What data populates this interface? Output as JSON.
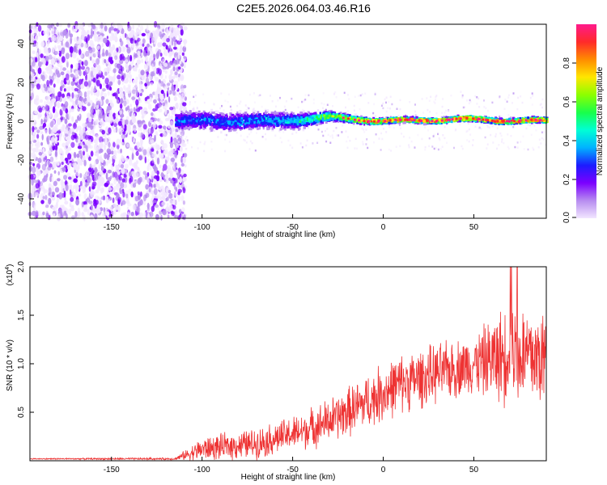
{
  "title": "C2E5.2026.064.03.46.R16",
  "chart_data": [
    {
      "type": "heatmap",
      "xlabel": "Height of straight line (km)",
      "ylabel": "Frequency (Hz)",
      "xlim": [
        -195,
        90
      ],
      "ylim": [
        -50,
        50
      ],
      "xticks": [
        -150,
        -100,
        -50,
        0,
        50
      ],
      "yticks": [
        -40,
        -20,
        0,
        20,
        40
      ],
      "colorbar": {
        "label": "Normalized spectral amplitude",
        "ticks": [
          "0.0",
          "0.2",
          "0.4",
          "0.6",
          "0.8"
        ],
        "range": [
          0,
          1
        ],
        "colors": [
          "#f2e6ff",
          "#b78cf0",
          "#7b00ff",
          "#1c1cff",
          "#00b3ff",
          "#00ffd5",
          "#19ff4a",
          "#8cff00",
          "#ffe600",
          "#ff8c00",
          "#ff2a2a",
          "#ff1a8c"
        ]
      },
      "noise_region_x": [
        -195,
        -115
      ],
      "signal_region_x": [
        -115,
        90
      ],
      "signal_center_hz": [
        {
          "x": -110,
          "y": 0
        },
        {
          "x": -60,
          "y": 0
        },
        {
          "x": -30,
          "y": 2
        },
        {
          "x": 0,
          "y": 0
        },
        {
          "x": 40,
          "y": 1
        },
        {
          "x": 90,
          "y": 0
        }
      ],
      "signal_halfwidth_hz": [
        {
          "x": -110,
          "y": 7
        },
        {
          "x": -50,
          "y": 6
        },
        {
          "x": -25,
          "y": 3
        },
        {
          "x": 0,
          "y": 2
        },
        {
          "x": 90,
          "y": 2
        }
      ],
      "peak_amplitude": [
        {
          "x": -110,
          "y": 0.35
        },
        {
          "x": -50,
          "y": 0.45
        },
        {
          "x": -25,
          "y": 0.75
        },
        {
          "x": 0,
          "y": 0.95
        },
        {
          "x": 90,
          "y": 0.95
        }
      ]
    },
    {
      "type": "line",
      "xlabel": "Height of straight line (km)",
      "ylabel": "SNR (10 * v/v)",
      "multiplier": "(x10",
      "multiplier_exp": "4",
      "xlim": [
        -195,
        90
      ],
      "ylim": [
        0,
        2.0
      ],
      "xticks": [
        -150,
        -100,
        -50,
        0,
        50
      ],
      "yticks": [
        "0.5",
        "1.0",
        "1.5",
        "2.0"
      ],
      "series": [
        {
          "color": "#ee3333",
          "envelope_mean": [
            {
              "x": -195,
              "y": 0.02
            },
            {
              "x": -115,
              "y": 0.02
            },
            {
              "x": -100,
              "y": 0.12
            },
            {
              "x": -70,
              "y": 0.18
            },
            {
              "x": -45,
              "y": 0.3
            },
            {
              "x": -25,
              "y": 0.45
            },
            {
              "x": -10,
              "y": 0.6
            },
            {
              "x": 10,
              "y": 0.8
            },
            {
              "x": 30,
              "y": 0.9
            },
            {
              "x": 50,
              "y": 1.0
            },
            {
              "x": 70,
              "y": 1.1
            },
            {
              "x": 90,
              "y": 1.05
            }
          ],
          "envelope_spread": [
            {
              "x": -195,
              "y": 0.005
            },
            {
              "x": -115,
              "y": 0.01
            },
            {
              "x": -100,
              "y": 0.1
            },
            {
              "x": -50,
              "y": 0.15
            },
            {
              "x": 0,
              "y": 0.25
            },
            {
              "x": 50,
              "y": 0.25
            },
            {
              "x": 70,
              "y": 0.45
            },
            {
              "x": 90,
              "y": 0.45
            }
          ],
          "peak_max": 2.0
        }
      ]
    }
  ]
}
